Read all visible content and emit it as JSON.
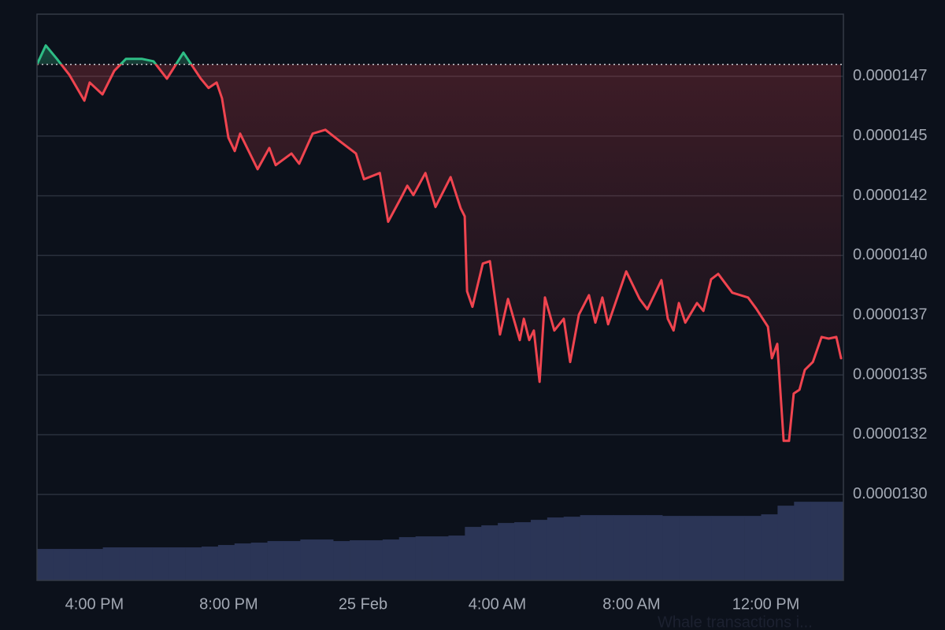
{
  "chart_data": {
    "type": "line",
    "x": [
      14.29,
      14.55,
      14.88,
      15.25,
      15.7,
      15.86,
      16.24,
      16.59,
      16.94,
      17.41,
      17.76,
      18.16,
      18.65,
      19.17,
      19.4,
      19.64,
      19.8,
      19.99,
      20.18,
      20.34,
      20.86,
      21.21,
      21.4,
      21.87,
      22.1,
      22.5,
      22.88,
      23.32,
      23.79,
      24.03,
      24.5,
      24.75,
      25.15,
      25.32,
      25.5,
      25.86,
      26.16,
      26.61,
      26.91,
      27.03,
      27.1,
      27.26,
      27.57,
      27.78,
      28.08,
      28.32,
      28.67,
      28.79,
      28.95,
      29.09,
      29.26,
      29.42,
      29.7,
      29.98,
      30.17,
      30.43,
      30.73,
      30.92,
      31.13,
      31.3,
      31.84,
      32.24,
      32.47,
      32.89,
      33.08,
      33.25,
      33.41,
      33.6,
      33.95,
      34.14,
      34.37,
      34.58,
      35.0,
      35.47,
      35.71,
      36.06,
      36.18,
      36.34,
      36.53,
      36.69,
      36.83,
      37.0,
      37.16,
      37.4,
      37.66,
      37.87,
      38.1,
      38.24
    ],
    "series": [
      {
        "up_color": "#2ebd85",
        "down_color": "#f0444f",
        "values": [
          1.48e-05,
          1.4879e-05,
          1.4823e-05,
          1.4757e-05,
          1.4648e-05,
          1.4724e-05,
          1.4674e-05,
          1.4773e-05,
          1.4823e-05,
          1.4823e-05,
          1.4813e-05,
          1.474e-05,
          1.4849e-05,
          1.474e-05,
          1.4701e-05,
          1.4724e-05,
          1.4658e-05,
          1.4493e-05,
          1.4437e-05,
          1.451e-05,
          1.4361e-05,
          1.445e-05,
          1.4378e-05,
          1.4427e-05,
          1.4384e-05,
          1.451e-05,
          1.4526e-05,
          1.4477e-05,
          1.4427e-05,
          1.4319e-05,
          1.4345e-05,
          1.4141e-05,
          1.4246e-05,
          1.4292e-05,
          1.4253e-05,
          1.4345e-05,
          1.4203e-05,
          1.4328e-05,
          1.4197e-05,
          1.4164e-05,
          1.385e-05,
          1.3785e-05,
          1.3966e-05,
          1.3976e-05,
          1.3669e-05,
          1.3818e-05,
          1.3646e-05,
          1.3735e-05,
          1.3646e-05,
          1.3686e-05,
          1.3471e-05,
          1.3824e-05,
          1.3686e-05,
          1.3735e-05,
          1.3554e-05,
          1.3752e-05,
          1.3834e-05,
          1.3719e-05,
          1.3824e-05,
          1.3712e-05,
          1.3933e-05,
          1.3818e-05,
          1.3775e-05,
          1.3897e-05,
          1.3735e-05,
          1.3686e-05,
          1.3801e-05,
          1.3719e-05,
          1.3801e-05,
          1.3768e-05,
          1.39e-05,
          1.3923e-05,
          1.3844e-05,
          1.3824e-05,
          1.3778e-05,
          1.3702e-05,
          1.357e-05,
          1.363e-05,
          1.3224e-05,
          1.3224e-05,
          1.3422e-05,
          1.3438e-05,
          1.3521e-05,
          1.3554e-05,
          1.3659e-05,
          1.3652e-05,
          1.3659e-05,
          1.357e-05
        ]
      }
    ],
    "baseline": 1.48e-05,
    "volume": {
      "color": "#2b3556",
      "values": [
        40,
        40,
        40,
        40,
        42,
        42,
        42,
        42,
        42,
        42,
        43,
        45,
        47,
        48,
        50,
        50,
        52,
        52,
        50,
        51,
        51,
        52,
        55,
        56,
        56,
        57,
        68,
        70,
        73,
        74,
        77,
        80,
        81,
        83,
        83,
        83,
        83,
        83,
        82,
        82,
        82,
        82,
        82,
        82,
        84,
        95,
        100,
        100,
        100
      ]
    },
    "y2lim": [
      0,
      720
    ],
    "xlim": [
      14.29,
      38.31
    ],
    "xticks": [
      {
        "value": 16,
        "label": "4:00 PM"
      },
      {
        "value": 20,
        "label": "8:00 PM"
      },
      {
        "value": 24,
        "label": "25 Feb"
      },
      {
        "value": 28,
        "label": "4:00 AM"
      },
      {
        "value": 32,
        "label": "8:00 AM"
      },
      {
        "value": 36,
        "label": "12:00 PM"
      }
    ],
    "ylim": [
      1.264e-05,
      1.501e-05
    ],
    "yticks": [
      {
        "value": 1.475e-05,
        "label": "0.0000147"
      },
      {
        "value": 1.45e-05,
        "label": "0.0000145"
      },
      {
        "value": 1.425e-05,
        "label": "0.0000142"
      },
      {
        "value": 1.4e-05,
        "label": "0.0000140"
      },
      {
        "value": 1.375e-05,
        "label": "0.0000137"
      },
      {
        "value": 1.35e-05,
        "label": "0.0000135"
      },
      {
        "value": 1.325e-05,
        "label": "0.0000132"
      },
      {
        "value": 1.3e-05,
        "label": "0.0000130"
      }
    ],
    "grid": true,
    "footer_text": "Whale transactions i..."
  }
}
